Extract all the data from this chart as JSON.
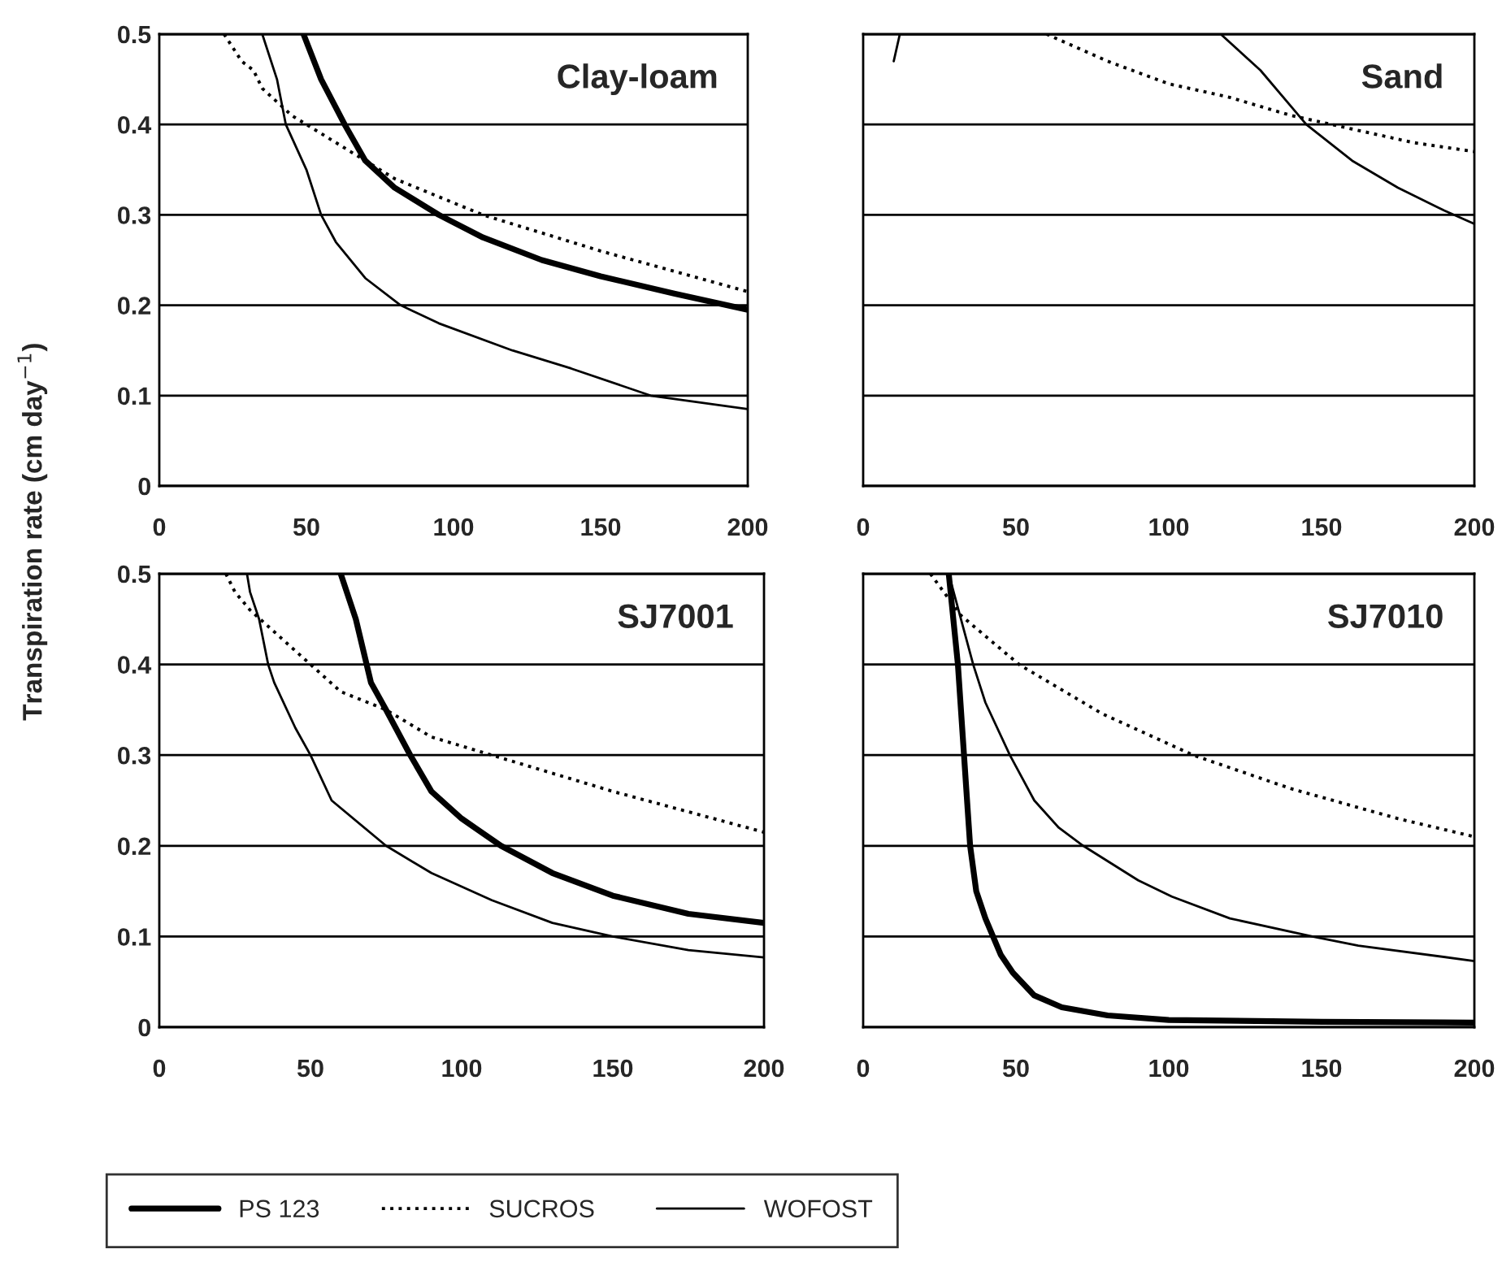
{
  "chart_data": [
    {
      "type": "line",
      "title": "Clay-loam",
      "ylabel": "Transpiration rate (cm day$^{−1}$)",
      "xlim": [
        0,
        200
      ],
      "xticks": [
        0,
        50,
        100,
        150,
        200
      ],
      "ylim": [
        0,
        0.5
      ],
      "yticks": [
        0,
        0.1,
        0.2,
        0.3,
        0.4,
        0.5
      ],
      "grid": "y",
      "legend": "bottom",
      "series": [
        {
          "name": "PS 123",
          "color": "#000000",
          "line_style": "solid",
          "x": [
            49,
            55,
            63,
            70,
            80,
            95,
            110,
            130,
            150,
            175,
            200
          ],
          "values": [
            0.5,
            0.45,
            0.4,
            0.36,
            0.33,
            0.3,
            0.275,
            0.25,
            0.232,
            0.213,
            0.195
          ]
        },
        {
          "name": "SUCROS",
          "color": "#000000",
          "line_style": "dotted",
          "x": [
            22,
            28,
            32,
            35,
            45,
            55,
            65,
            80,
            110,
            150,
            200
          ],
          "values": [
            0.5,
            0.47,
            0.46,
            0.44,
            0.41,
            0.39,
            0.37,
            0.34,
            0.3,
            0.26,
            0.215
          ]
        },
        {
          "name": "WOFOST",
          "color": "#000000",
          "line_style": "solid",
          "x": [
            35,
            40,
            43,
            50,
            55,
            60,
            70,
            82,
            95,
            120,
            140,
            167,
            200
          ],
          "values": [
            0.5,
            0.45,
            0.4,
            0.35,
            0.3,
            0.27,
            0.23,
            0.2,
            0.18,
            0.15,
            0.13,
            0.1,
            0.085
          ]
        }
      ]
    },
    {
      "type": "line",
      "title": "Sand",
      "xlim": [
        0,
        200
      ],
      "xticks": [
        0,
        50,
        100,
        150,
        200
      ],
      "ylim": [
        0,
        0.5
      ],
      "yticks": [
        0,
        0.1,
        0.2,
        0.3,
        0.4,
        0.5
      ],
      "grid": "y",
      "tick_labels": "x",
      "series": [
        {
          "name": "SUCROS",
          "color": "#000000",
          "line_style": "dotted",
          "x": [
            60,
            80,
            100,
            120,
            140,
            160,
            180,
            200
          ],
          "values": [
            0.5,
            0.47,
            0.445,
            0.43,
            0.41,
            0.395,
            0.38,
            0.37
          ]
        },
        {
          "name": "WOFOST",
          "color": "#000000",
          "line_style": "solid",
          "x": [
            10,
            12,
            117,
            130,
            140,
            145,
            160,
            175,
            190,
            200
          ],
          "values": [
            0.47,
            0.5,
            0.5,
            0.46,
            0.42,
            0.4,
            0.36,
            0.33,
            0.305,
            0.29
          ]
        }
      ]
    },
    {
      "type": "line",
      "title": "SJ7001",
      "xlim": [
        0,
        200
      ],
      "xticks": [
        0,
        50,
        100,
        150,
        200
      ],
      "ylim": [
        0,
        0.5
      ],
      "yticks": [
        0,
        0.1,
        0.2,
        0.3,
        0.4,
        0.5
      ],
      "grid": "y",
      "series": [
        {
          "name": "PS 123",
          "color": "#000000",
          "line_style": "solid",
          "x": [
            60,
            65,
            70,
            75,
            83,
            90,
            100,
            113,
            130,
            150,
            175,
            200
          ],
          "values": [
            0.5,
            0.45,
            0.38,
            0.35,
            0.3,
            0.26,
            0.23,
            0.2,
            0.17,
            0.145,
            0.125,
            0.115
          ]
        },
        {
          "name": "SUCROS",
          "color": "#000000",
          "line_style": "dotted",
          "x": [
            22,
            25,
            30,
            40,
            50,
            60,
            75,
            90,
            110,
            150,
            200
          ],
          "values": [
            0.5,
            0.48,
            0.46,
            0.43,
            0.4,
            0.37,
            0.35,
            0.32,
            0.3,
            0.26,
            0.215
          ]
        },
        {
          "name": "WOFOST",
          "color": "#000000",
          "line_style": "solid",
          "x": [
            29,
            30,
            33,
            36,
            38,
            45,
            50,
            57,
            75,
            90,
            110,
            130,
            150,
            175,
            200
          ],
          "values": [
            0.5,
            0.48,
            0.45,
            0.4,
            0.38,
            0.33,
            0.3,
            0.25,
            0.2,
            0.17,
            0.14,
            0.115,
            0.1,
            0.085,
            0.077
          ]
        }
      ]
    },
    {
      "type": "line",
      "title": "SJ7010",
      "xlim": [
        0,
        200
      ],
      "xticks": [
        0,
        50,
        100,
        150,
        200
      ],
      "ylim": [
        0,
        0.5
      ],
      "yticks": [
        0,
        0.1,
        0.2,
        0.3,
        0.4,
        0.5
      ],
      "grid": "y",
      "tick_labels": "x",
      "series": [
        {
          "name": "PS 123",
          "color": "#000000",
          "line_style": "solid",
          "x": [
            28,
            31,
            33,
            35,
            37,
            40,
            45,
            49,
            56,
            65,
            80,
            100,
            150,
            200
          ],
          "values": [
            0.5,
            0.4,
            0.3,
            0.2,
            0.15,
            0.12,
            0.08,
            0.06,
            0.035,
            0.022,
            0.013,
            0.008,
            0.006,
            0.005
          ]
        },
        {
          "name": "SUCROS",
          "color": "#000000",
          "line_style": "dotted",
          "x": [
            22,
            32,
            51,
            78,
            108,
            140,
            175,
            200
          ],
          "values": [
            0.5,
            0.454,
            0.4,
            0.346,
            0.3,
            0.263,
            0.23,
            0.21
          ]
        },
        {
          "name": "WOFOST",
          "color": "#000000",
          "line_style": "solid",
          "x": [
            28,
            36,
            40,
            48,
            56,
            64,
            72,
            90,
            101,
            120,
            147,
            162,
            200
          ],
          "values": [
            0.5,
            0.4,
            0.358,
            0.3,
            0.25,
            0.22,
            0.2,
            0.162,
            0.144,
            0.12,
            0.1,
            0.09,
            0.073
          ]
        }
      ]
    }
  ]
}
